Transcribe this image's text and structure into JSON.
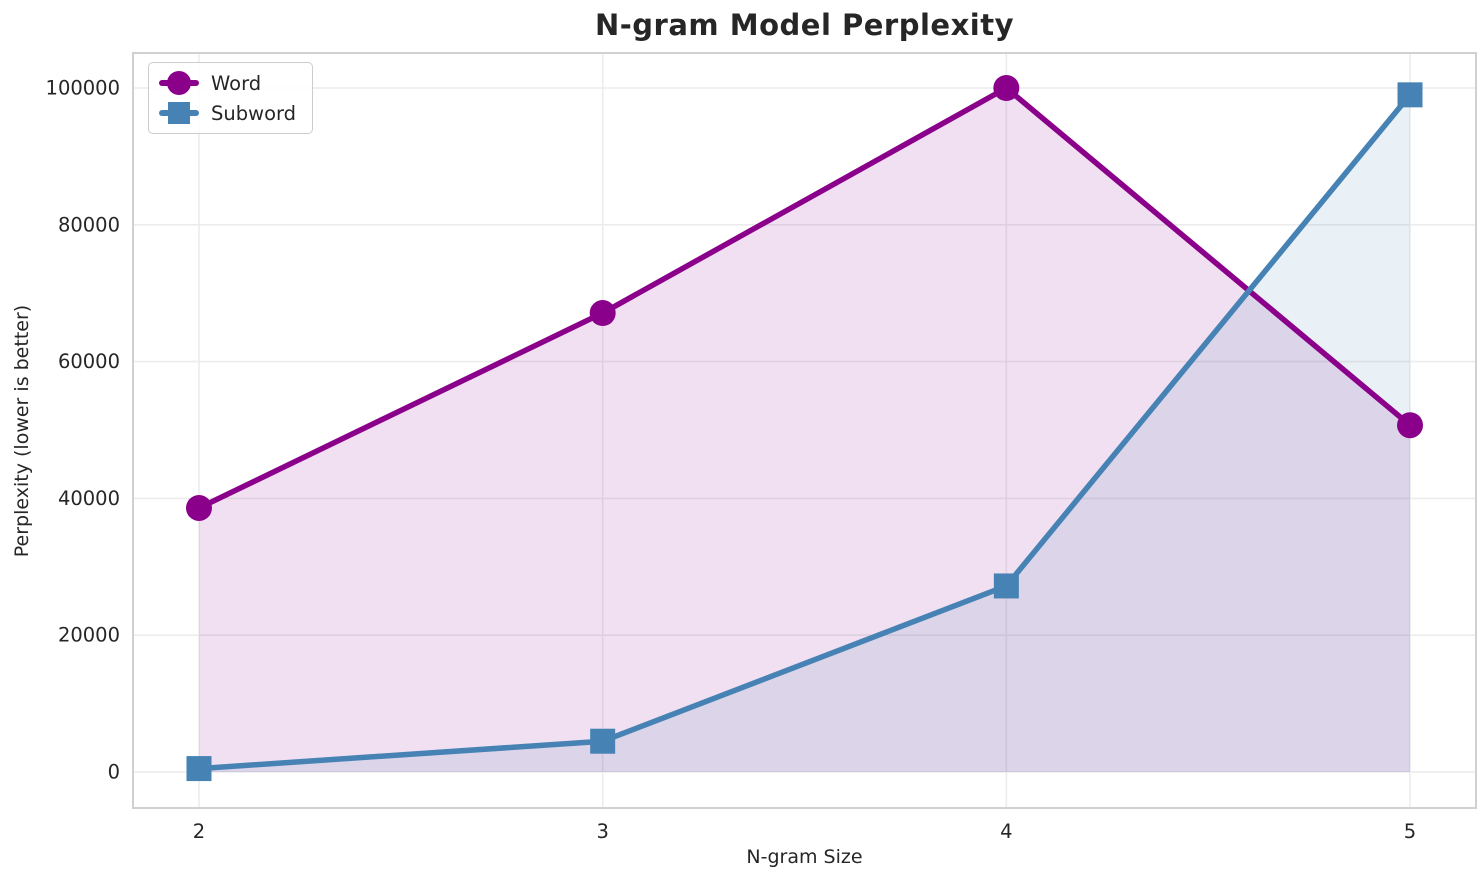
{
  "chart_data": {
    "type": "line",
    "title": "N-gram Model Perplexity",
    "xlabel": "N-gram Size",
    "ylabel": "Perplexity (lower is better)",
    "x": [
      2,
      3,
      4,
      5
    ],
    "xticks": [
      "2",
      "3",
      "4",
      "5"
    ],
    "yticks": [
      0,
      20000,
      40000,
      60000,
      80000,
      100000
    ],
    "ytick_labels": [
      "0",
      "20000",
      "40000",
      "60000",
      "80000",
      "100000"
    ],
    "ylim": [
      -4500,
      105000
    ],
    "grid": true,
    "legend_position": "upper left",
    "series": [
      {
        "name": "Word",
        "color": "#8B008B",
        "marker": "circle",
        "values": [
          38600,
          67100,
          100000,
          50700
        ],
        "fill_to_zero": true
      },
      {
        "name": "Subword",
        "color": "#4682B4",
        "marker": "square",
        "values": [
          500,
          4500,
          27200,
          99000
        ],
        "fill_to_zero": true
      }
    ],
    "colors": {
      "text": "#262626",
      "grid": "#ECECEC",
      "spine": "#D0D0D0",
      "background": "#ffffff",
      "fill_opacity": 0.12
    }
  }
}
